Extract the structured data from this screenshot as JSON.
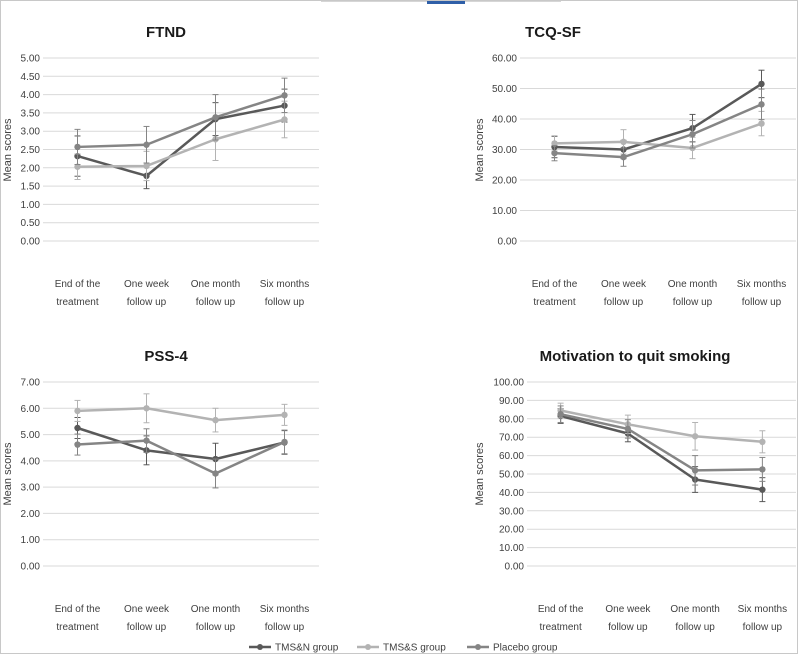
{
  "colors": {
    "tmsn": "#595959",
    "tmss": "#b3b3b3",
    "placebo": "#858585",
    "grid": "#d9d9d9",
    "text": "#404040",
    "title": "#1a1a1a"
  },
  "legend": {
    "placement": "bottom-center",
    "entries": [
      "TMS&N group",
      "TMS&S group",
      "Placebo group"
    ]
  },
  "chart_data": [
    {
      "type": "line",
      "title": "FTND",
      "ylabel": "Mean scores",
      "ylim": [
        0,
        5
      ],
      "ystep": 0.5,
      "ytick_labels": [
        "0.00",
        "0.50",
        "1.00",
        "1.50",
        "2.00",
        "2.50",
        "3.00",
        "3.50",
        "4.00",
        "4.50",
        "5.00"
      ],
      "categories": [
        [
          "End of the",
          "treatment"
        ],
        [
          "One week",
          "follow up"
        ],
        [
          "One month",
          "follow up"
        ],
        [
          "Six months",
          "follow up"
        ]
      ],
      "series": [
        {
          "name": "TMS&N group",
          "values": [
            2.32,
            1.78,
            3.33,
            3.7
          ],
          "errors": [
            0.55,
            0.35,
            0.45,
            0.45
          ]
        },
        {
          "name": "TMS&S group",
          "values": [
            2.03,
            2.05,
            2.78,
            3.32
          ],
          "errors": [
            0.35,
            0.4,
            0.58,
            0.5
          ]
        },
        {
          "name": "Placebo group",
          "values": [
            2.57,
            2.63,
            3.38,
            3.98
          ],
          "errors": [
            0.48,
            0.5,
            0.62,
            0.47
          ]
        }
      ]
    },
    {
      "type": "line",
      "title": "TCQ-SF",
      "ylabel": "Mean scores",
      "ylim": [
        0,
        60
      ],
      "ystep": 10,
      "ytick_labels": [
        "0.00",
        "10.00",
        "20.00",
        "30.00",
        "40.00",
        "50.00",
        "60.00"
      ],
      "categories": [
        [
          "End of the",
          "treatment"
        ],
        [
          "One week",
          "follow up"
        ],
        [
          "One month",
          "follow up"
        ],
        [
          "Six months",
          "follow up"
        ]
      ],
      "series": [
        {
          "name": "TMS&N group",
          "values": [
            30.8,
            30.0,
            37.0,
            51.5
          ],
          "errors": [
            3.5,
            3.0,
            4.5,
            4.5
          ]
        },
        {
          "name": "TMS&S group",
          "values": [
            32.0,
            32.5,
            30.5,
            38.5
          ],
          "errors": [
            2.5,
            4.0,
            3.5,
            4.0
          ]
        },
        {
          "name": "Placebo group",
          "values": [
            28.8,
            27.5,
            35.0,
            44.8
          ],
          "errors": [
            2.5,
            3.0,
            4.5,
            5.0
          ]
        }
      ]
    },
    {
      "type": "line",
      "title": "PSS-4",
      "ylabel": "Mean scores",
      "ylim": [
        0,
        7
      ],
      "ystep": 1,
      "ytick_labels": [
        "0.00",
        "1.00",
        "2.00",
        "3.00",
        "4.00",
        "5.00",
        "6.00",
        "7.00"
      ],
      "categories": [
        [
          "End of the",
          "treatment"
        ],
        [
          "One week",
          "follow up"
        ],
        [
          "One month",
          "follow up"
        ],
        [
          "Six months",
          "follow up"
        ]
      ],
      "series": [
        {
          "name": "TMS&N group",
          "values": [
            5.25,
            4.4,
            4.07,
            4.7
          ],
          "errors": [
            0.4,
            0.55,
            0.6,
            0.45
          ]
        },
        {
          "name": "TMS&S group",
          "values": [
            5.9,
            6.0,
            5.55,
            5.75
          ],
          "errors": [
            0.4,
            0.55,
            0.45,
            0.4
          ]
        },
        {
          "name": "Placebo group",
          "values": [
            4.62,
            4.77,
            3.52,
            4.72
          ],
          "errors": [
            0.4,
            0.45,
            0.55,
            0.45
          ]
        }
      ]
    },
    {
      "type": "line",
      "title": "Motivation to quit smoking",
      "ylabel": "Mean scores",
      "ylim": [
        0,
        100
      ],
      "ystep": 10,
      "ytick_labels": [
        "0.00",
        "10.00",
        "20.00",
        "30.00",
        "40.00",
        "50.00",
        "60.00",
        "70.00",
        "80.00",
        "90.00",
        "100.00"
      ],
      "categories": [
        [
          "End of the",
          "treatment"
        ],
        [
          "One week",
          "follow up"
        ],
        [
          "One month",
          "follow up"
        ],
        [
          "Six months",
          "follow up"
        ]
      ],
      "series": [
        {
          "name": "TMS&N group",
          "values": [
            81.5,
            72.0,
            47.0,
            41.5
          ],
          "errors": [
            4.0,
            4.5,
            7.0,
            6.5
          ]
        },
        {
          "name": "TMS&S group",
          "values": [
            84.5,
            77.0,
            70.5,
            67.5
          ],
          "errors": [
            4.0,
            5.0,
            7.5,
            6.0
          ]
        },
        {
          "name": "Placebo group",
          "values": [
            82.5,
            74.5,
            52.0,
            52.5
          ],
          "errors": [
            4.5,
            5.0,
            8.0,
            6.5
          ]
        }
      ]
    }
  ]
}
